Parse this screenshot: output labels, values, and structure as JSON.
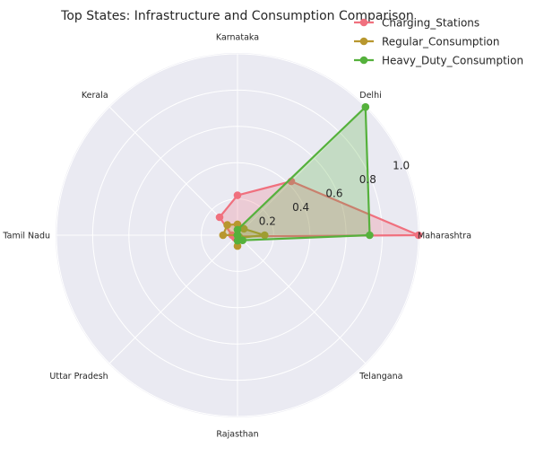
{
  "chart_data": {
    "type": "radar",
    "title": "Top States: Infrastructure and Consumption Comparison",
    "categories": [
      "Maharashtra",
      "Delhi",
      "Karnataka",
      "Kerala",
      "Tamil Nadu",
      "Uttar Pradesh",
      "Rajasthan",
      "Telangana"
    ],
    "rlim": [
      0,
      1.0
    ],
    "rticks": [
      0.2,
      0.4,
      0.6,
      0.8,
      1.0
    ],
    "rtick_labels": [
      "0.2",
      "0.4",
      "0.6",
      "0.8",
      "1.0"
    ],
    "grid": true,
    "legend_position": "top-right",
    "series": [
      {
        "name": "Charging_Stations",
        "color": "#f0707e",
        "values": [
          1.0,
          0.42,
          0.22,
          0.14,
          0.03,
          0.02,
          0.02,
          0.01
        ]
      },
      {
        "name": "Regular_Consumption",
        "color": "#b8972e",
        "values": [
          0.15,
          0.05,
          0.06,
          0.08,
          0.08,
          0.0,
          0.06,
          0.02
        ]
      },
      {
        "name": "Heavy_Duty_Consumption",
        "color": "#55b13c",
        "values": [
          0.73,
          1.0,
          0.03,
          0.0,
          0.0,
          0.0,
          0.03,
          0.04
        ]
      }
    ]
  }
}
